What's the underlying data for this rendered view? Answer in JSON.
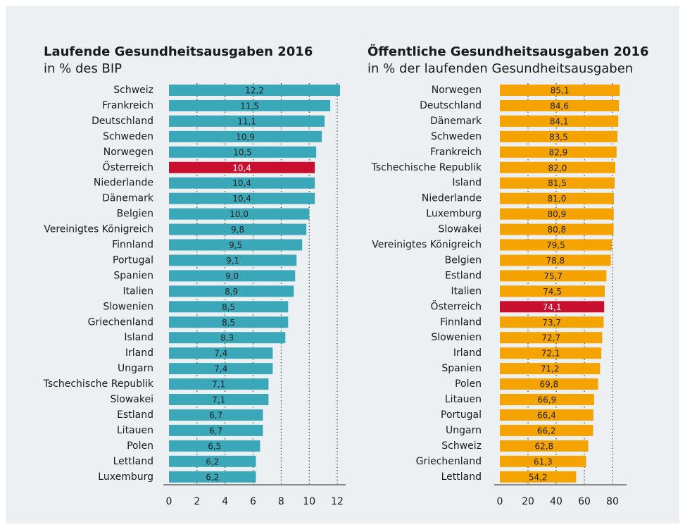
{
  "chart_data": [
    {
      "type": "bar",
      "orientation": "horizontal",
      "title": "Laufende Gesundheitsausgaben 2016",
      "subtitle": "in % des BIP",
      "categories": [
        "Schweiz",
        "Frankreich",
        "Deutschland",
        "Schweden",
        "Norwegen",
        "Österreich",
        "Niederlande",
        "Dänemark",
        "Belgien",
        "Vereinigtes Königreich",
        "Finnland",
        "Portugal",
        "Spanien",
        "Italien",
        "Slowenien",
        "Griechenland",
        "Island",
        "Irland",
        "Ungarn",
        "Tschechische Republik",
        "Slowakei",
        "Estland",
        "Litauen",
        "Polen",
        "Lettland",
        "Luxemburg"
      ],
      "values": [
        12.2,
        11.5,
        11.1,
        10.9,
        10.5,
        10.4,
        10.4,
        10.4,
        10.0,
        9.8,
        9.5,
        9.1,
        9.0,
        8.9,
        8.5,
        8.5,
        8.3,
        7.4,
        7.4,
        7.1,
        7.1,
        6.7,
        6.7,
        6.5,
        6.2,
        6.2
      ],
      "value_labels": [
        "12,2",
        "11,5",
        "11,1",
        "10,9",
        "10,5",
        "10,4",
        "10,4",
        "10,4",
        "10,0",
        "9,8",
        "9,5",
        "9,1",
        "9,0",
        "8,9",
        "8,5",
        "8,5",
        "8,3",
        "7,4",
        "7,4",
        "7,1",
        "7,1",
        "6,7",
        "6,7",
        "6,5",
        "6,2",
        "6,2"
      ],
      "color": "#3aa8b8",
      "highlight_color": "#c8102e",
      "highlight": "Österreich",
      "xlim": [
        0,
        12.5
      ],
      "xticks": [
        0,
        2,
        4,
        6,
        8,
        10,
        12
      ],
      "grid": true
    },
    {
      "type": "bar",
      "orientation": "horizontal",
      "title": "Öffentliche Gesundheitsausgaben 2016",
      "subtitle": "in % der laufenden Gesundheitsausgaben",
      "categories": [
        "Norwegen",
        "Deutschland",
        "Dänemark",
        "Schweden",
        "Frankreich",
        "Tschechische Republik",
        "Island",
        "Niederlande",
        "Luxemburg",
        "Slowakei",
        "Vereinigtes Königreich",
        "Belgien",
        "Estland",
        "Italien",
        "Österreich",
        "Finnland",
        "Slowenien",
        "Irland",
        "Spanien",
        "Polen",
        "Litauen",
        "Portugal",
        "Ungarn",
        "Schweiz",
        "Griechenland",
        "Lettland"
      ],
      "values": [
        85.1,
        84.6,
        84.1,
        83.5,
        82.9,
        82.0,
        81.5,
        81.0,
        80.9,
        80.8,
        79.5,
        78.8,
        75.7,
        74.5,
        74.1,
        73.7,
        72.7,
        72.1,
        71.2,
        69.8,
        66.9,
        66.4,
        66.2,
        62.8,
        61.3,
        54.2
      ],
      "value_labels": [
        "85,1",
        "84,6",
        "84,1",
        "83,5",
        "82,9",
        "82,0",
        "81,5",
        "81,0",
        "80,9",
        "80,8",
        "79,5",
        "78,8",
        "75,7",
        "74,5",
        "74,1",
        "73,7",
        "72,7",
        "72,1",
        "71,2",
        "69,8",
        "66,9",
        "66,4",
        "66,2",
        "62,8",
        "61,3",
        "54,2"
      ],
      "color": "#f5a300",
      "highlight_color": "#c8102e",
      "highlight": "Österreich",
      "xlim": [
        0,
        89
      ],
      "xticks": [
        0,
        20,
        40,
        60,
        80
      ],
      "grid": true
    }
  ]
}
